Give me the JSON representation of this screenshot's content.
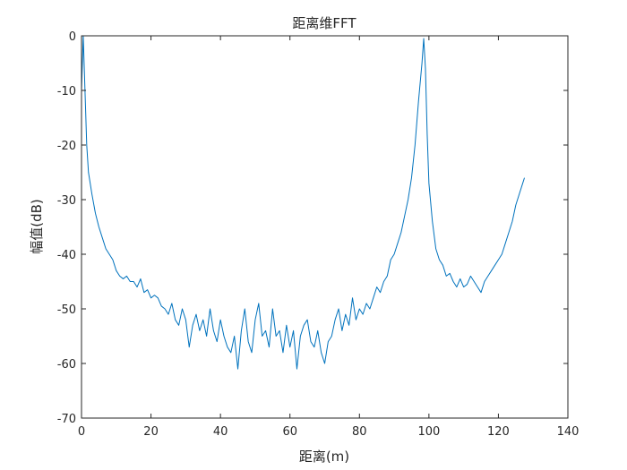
{
  "chart_data": {
    "type": "line",
    "title": "距离维FFT",
    "xlabel": "距离(m)",
    "ylabel": "幅值(dB)",
    "xlim": [
      0,
      140
    ],
    "ylim": [
      -70,
      0
    ],
    "xticks": [
      0,
      20,
      40,
      60,
      80,
      100,
      120,
      140
    ],
    "yticks": [
      0,
      -10,
      -20,
      -30,
      -40,
      -50,
      -60,
      -70
    ],
    "xtick_labels": [
      "0",
      "20",
      "40",
      "60",
      "80",
      "100",
      "120",
      "140"
    ],
    "ytick_labels": [
      "0",
      "-10",
      "-20",
      "-30",
      "-40",
      "-50",
      "-60",
      "-70"
    ],
    "grid": false,
    "box": true,
    "line_color": "#0072BD",
    "series": [
      {
        "x": [
          0,
          0.5,
          1,
          1.5,
          2,
          3,
          4,
          5,
          6,
          7,
          8,
          9,
          10,
          11,
          12,
          13,
          14,
          15,
          16,
          17,
          18,
          19,
          20,
          21,
          22,
          23,
          24,
          25,
          26,
          27,
          28,
          29,
          30,
          31,
          32,
          33,
          34,
          35,
          36,
          37,
          38,
          39,
          40,
          41,
          42,
          43,
          44,
          45,
          46,
          47,
          48,
          49,
          50,
          51,
          52,
          53,
          54,
          55,
          56,
          57,
          58,
          59,
          60,
          61,
          62,
          63,
          64,
          65,
          66,
          67,
          68,
          69,
          70,
          71,
          72,
          73,
          74,
          75,
          76,
          77,
          78,
          79,
          80,
          81,
          82,
          83,
          84,
          85,
          86,
          87,
          88,
          89,
          90,
          91,
          92,
          93,
          94,
          95,
          96,
          97,
          98,
          98.5,
          99,
          99.5,
          100,
          101,
          102,
          103,
          104,
          105,
          106,
          107,
          108,
          109,
          110,
          111,
          112,
          113,
          114,
          115,
          116,
          117,
          118,
          119,
          120,
          121,
          122,
          123,
          124,
          125,
          126,
          127,
          127.5
        ],
        "y": [
          -10,
          0,
          -10,
          -20,
          -25,
          -29,
          -32.5,
          -35,
          -37,
          -39,
          -40,
          -41,
          -43,
          -44,
          -44.5,
          -44,
          -45,
          -45,
          -46,
          -44.5,
          -47,
          -46.5,
          -48,
          -47.5,
          -48,
          -49.5,
          -50,
          -51,
          -49,
          -52,
          -53,
          -50,
          -52,
          -57,
          -53,
          -51,
          -54,
          -52,
          -55,
          -50,
          -54,
          -56,
          -52,
          -55,
          -57,
          -58,
          -55,
          -61,
          -54,
          -50,
          -56,
          -58,
          -52,
          -49,
          -55,
          -54,
          -57,
          -50,
          -55,
          -54,
          -58,
          -53,
          -57,
          -54,
          -61,
          -55,
          -53,
          -52,
          -56,
          -57,
          -54,
          -58,
          -60,
          -56,
          -55,
          -52,
          -50,
          -54,
          -51,
          -53,
          -48,
          -52,
          -50,
          -51,
          -49,
          -50,
          -48,
          -46,
          -47,
          -45,
          -44,
          -41,
          -40,
          -38,
          -36,
          -33,
          -30,
          -26,
          -20,
          -12,
          -5,
          -0.5,
          -6,
          -18,
          -27,
          -34,
          -39,
          -41,
          -42,
          -44,
          -43.5,
          -45,
          -46,
          -44.5,
          -46,
          -45.5,
          -44,
          -45,
          -46,
          -47,
          -45,
          -44,
          -43,
          -42,
          -41,
          -40,
          -38,
          -36,
          -34,
          -31,
          -29,
          -27,
          -26
        ]
      }
    ]
  }
}
